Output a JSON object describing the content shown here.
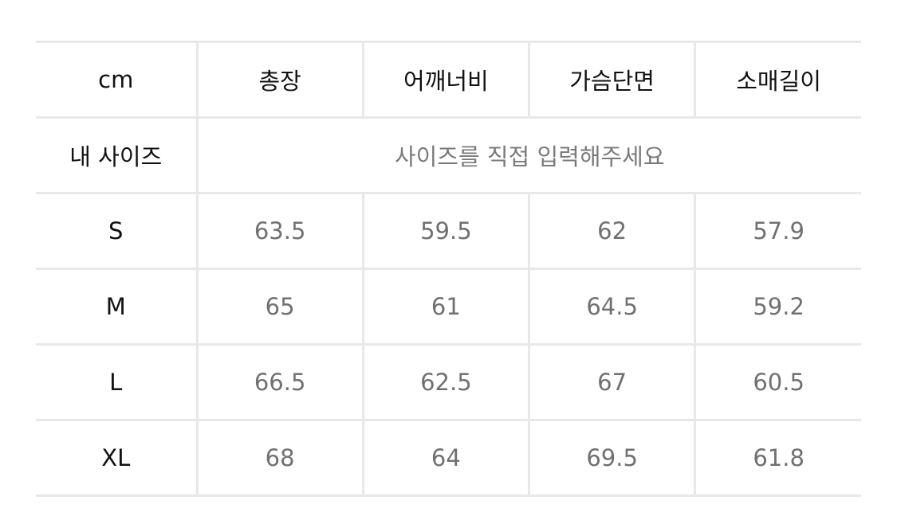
{
  "size_table": {
    "unit_label": "cm",
    "columns": [
      "총장",
      "어깨너비",
      "가슴단면",
      "소매길이"
    ],
    "my_size": {
      "label": "내 사이즈",
      "placeholder": "사이즈를 직접 입력해주세요"
    },
    "rows": [
      {
        "size": "S",
        "values": [
          "63.5",
          "59.5",
          "62",
          "57.9"
        ]
      },
      {
        "size": "M",
        "values": [
          "65",
          "61",
          "64.5",
          "59.2"
        ]
      },
      {
        "size": "L",
        "values": [
          "66.5",
          "62.5",
          "67",
          "60.5"
        ]
      },
      {
        "size": "XL",
        "values": [
          "68",
          "64",
          "69.5",
          "61.8"
        ]
      }
    ]
  }
}
